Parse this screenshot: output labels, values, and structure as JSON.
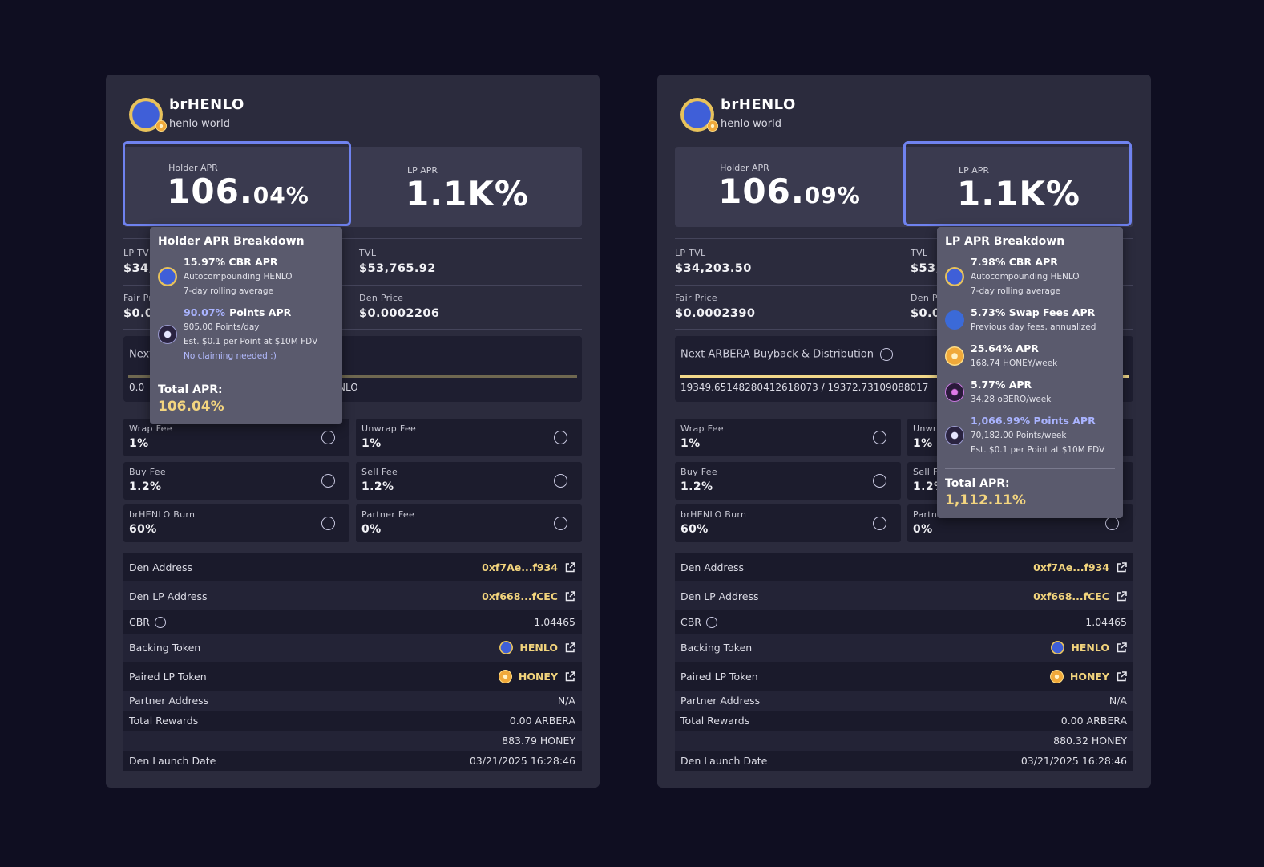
{
  "panels": [
    {
      "name": "brHENLO",
      "subtitle": "henlo world",
      "holder_apr": {
        "label": "Holder APR",
        "whole": "106.",
        "fraction": "04%"
      },
      "lp_apr": {
        "label": "LP APR",
        "value": "1.1K%"
      },
      "stats": [
        {
          "label": "LP TVL",
          "value": "$34,"
        },
        {
          "label": "TVL",
          "value": "$53,765.92"
        },
        {
          "label": "Fair Price",
          "value": "$0.0"
        },
        {
          "label": "Den Price",
          "value": "$0.0002206"
        }
      ],
      "buyback": {
        "label": "Next ARBERA Buyback & Distribution",
        "progress": "0.0",
        "progress_end": "NLO",
        "bar_color": "#6f6850"
      },
      "fees": [
        {
          "label": "Wrap Fee",
          "value": "1%"
        },
        {
          "label": "Unwrap Fee",
          "value": "1%"
        },
        {
          "label": "Buy Fee",
          "value": "1.2%"
        },
        {
          "label": "Sell Fee",
          "value": "1.2%"
        },
        {
          "label": "brHENLO Burn",
          "value": "60%"
        },
        {
          "label": "Partner Fee",
          "value": "0%"
        }
      ],
      "details": [
        {
          "label": "Den Address",
          "value": "0xf7Ae...f934",
          "link": true
        },
        {
          "label": "Den LP Address",
          "value": "0xf668...fCEC",
          "link": true
        },
        {
          "label": "CBR",
          "value": "1.04465",
          "info": true
        },
        {
          "label": "Backing Token",
          "value": "HENLO",
          "icon": "henlo",
          "link": true
        },
        {
          "label": "Paired LP Token",
          "value": "HONEY",
          "icon": "honey",
          "link": true
        },
        {
          "label": "Partner Address",
          "value": "N/A"
        },
        {
          "label": "Total Rewards",
          "value": "0.00 ARBERA"
        },
        {
          "value": "883.79 HONEY"
        },
        {
          "label": "Den Launch Date",
          "value": "03/21/2025 16:28:46"
        }
      ],
      "tooltip": {
        "for": "holder_apr",
        "title": "Holder APR Breakdown",
        "items": [
          {
            "icon": "henlo",
            "title": "15.97% CBR APR",
            "lines": [
              "Autocompounding HENLO",
              "7-day rolling average"
            ]
          },
          {
            "icon": "points",
            "accent": "90.07%",
            "title": "Points APR",
            "lines": [
              "905.00 Points/day",
              "Est. $0.1 per Point at $10M FDV"
            ],
            "note": "No claiming needed :)"
          }
        ],
        "total_label": "Total APR:",
        "total_value": "106.04%"
      }
    },
    {
      "name": "brHENLO",
      "subtitle": "henlo world",
      "holder_apr": {
        "label": "Holder APR",
        "whole": "106.",
        "fraction": "09%"
      },
      "lp_apr": {
        "label": "LP APR",
        "value": "1.1K%"
      },
      "stats": [
        {
          "label": "LP TVL",
          "value": "$34,203.50"
        },
        {
          "label": "TVL",
          "value": "$53,"
        },
        {
          "label": "Fair Price",
          "value": "$0.0002390"
        },
        {
          "label": "Den Price",
          "value": "$0.0"
        }
      ],
      "buyback": {
        "label": "Next ARBERA Buyback & Distribution",
        "progress": "19349.65148280412618073 / 19372.73109088017",
        "bar_color": "#f2d98a"
      },
      "fees": [
        {
          "label": "Wrap Fee",
          "value": "1%"
        },
        {
          "label": "Unwrap Fee",
          "value": "1%"
        },
        {
          "label": "Buy Fee",
          "value": "1.2%"
        },
        {
          "label": "Sell Fee",
          "value": "1.2%"
        },
        {
          "label": "brHENLO Burn",
          "value": "60%"
        },
        {
          "label": "Partner Fee",
          "value": "0%"
        }
      ],
      "details": [
        {
          "label": "Den Address",
          "value": "0xf7Ae...f934",
          "link": true
        },
        {
          "label": "Den LP Address",
          "value": "0xf668...fCEC",
          "link": true
        },
        {
          "label": "CBR",
          "value": "1.04465",
          "info": true
        },
        {
          "label": "Backing Token",
          "value": "HENLO",
          "icon": "henlo",
          "link": true
        },
        {
          "label": "Paired LP Token",
          "value": "HONEY",
          "icon": "honey",
          "link": true
        },
        {
          "label": "Partner Address",
          "value": "N/A"
        },
        {
          "label": "Total Rewards",
          "value": "0.00 ARBERA"
        },
        {
          "value": "880.32 HONEY"
        },
        {
          "label": "Den Launch Date",
          "value": "03/21/2025 16:28:46"
        }
      ],
      "tooltip": {
        "for": "lp_apr",
        "title": "LP APR Breakdown",
        "items": [
          {
            "icon": "henlo",
            "title": "7.98% CBR APR",
            "lines": [
              "Autocompounding HENLO",
              "7-day rolling average"
            ]
          },
          {
            "icon": "swap",
            "title": "5.73% Swap Fees APR",
            "lines": [
              "Previous day fees, annualized"
            ]
          },
          {
            "icon": "honey",
            "title": "25.64% APR",
            "lines": [
              "168.74 HONEY/week"
            ]
          },
          {
            "icon": "obero",
            "title": "5.77% APR",
            "lines": [
              "34.28 oBERO/week"
            ]
          },
          {
            "icon": "points",
            "accent": "1,066.99% Points APR",
            "lines": [
              "70,182.00 Points/week",
              "Est. $0.1 per Point at $10M FDV"
            ]
          }
        ],
        "total_label": "Total APR:",
        "total_value": "1,112.11%"
      }
    }
  ]
}
